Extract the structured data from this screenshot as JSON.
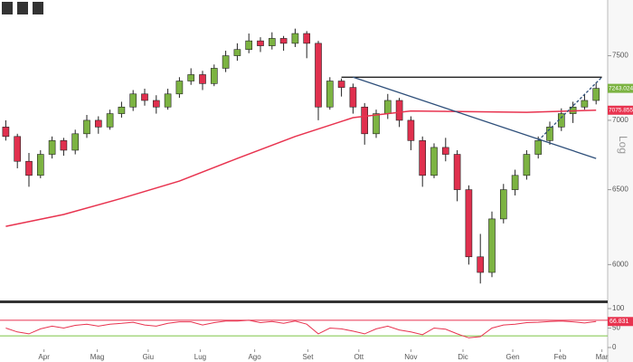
{
  "chart_data": {
    "type": "candlestick",
    "log_scale": true,
    "scale_label": "Log",
    "x": [
      0,
      1,
      2,
      3,
      4,
      5,
      6,
      7,
      8,
      9,
      10,
      11,
      12,
      13,
      14,
      15,
      16,
      17,
      18,
      19,
      20,
      21,
      22,
      23,
      24,
      25,
      26,
      27,
      28,
      29,
      30,
      31,
      32,
      33,
      34,
      35,
      36,
      37,
      38,
      39,
      40,
      41,
      42,
      43,
      44,
      45,
      46,
      47,
      48,
      49,
      50,
      51
    ],
    "open": [
      6950,
      6880,
      6700,
      6600,
      6750,
      6850,
      6780,
      6900,
      7000,
      6950,
      7050,
      7100,
      7200,
      7150,
      7100,
      7200,
      7300,
      7350,
      7280,
      7400,
      7500,
      7550,
      7620,
      7580,
      7640,
      7600,
      7680,
      7600,
      7100,
      7300,
      7250,
      7100,
      6900,
      7050,
      7150,
      7000,
      6850,
      6600,
      6800,
      6750,
      6500,
      6050,
      5950,
      6300,
      6500,
      6600,
      6750,
      6850,
      6950,
      7050,
      7100,
      7150
    ],
    "high": [
      7000,
      6900,
      6760,
      6780,
      6880,
      6870,
      6930,
      7040,
      7030,
      7080,
      7140,
      7230,
      7240,
      7190,
      7240,
      7330,
      7400,
      7380,
      7430,
      7540,
      7600,
      7680,
      7650,
      7690,
      7660,
      7720,
      7700,
      7620,
      7330,
      7320,
      7280,
      7130,
      7080,
      7200,
      7170,
      7030,
      6880,
      6830,
      6870,
      6780,
      6530,
      6200,
      6350,
      6540,
      6640,
      6780,
      6880,
      6990,
      7090,
      7140,
      7200,
      7290
    ],
    "low": [
      6850,
      6650,
      6520,
      6580,
      6720,
      6740,
      6750,
      6870,
      6900,
      6930,
      7020,
      7070,
      7110,
      7050,
      7080,
      7170,
      7270,
      7230,
      7260,
      7370,
      7460,
      7520,
      7530,
      7550,
      7540,
      7570,
      7480,
      7000,
      7080,
      7180,
      7050,
      6820,
      6870,
      7010,
      6950,
      6780,
      6520,
      6580,
      6700,
      6420,
      6000,
      5880,
      5920,
      6270,
      6460,
      6570,
      6720,
      6820,
      6920,
      6980,
      7080,
      7120
    ],
    "close": [
      6880,
      6700,
      6600,
      6750,
      6850,
      6780,
      6900,
      7000,
      6950,
      7050,
      7100,
      7200,
      7150,
      7100,
      7200,
      7300,
      7350,
      7280,
      7400,
      7500,
      7550,
      7620,
      7580,
      7640,
      7600,
      7680,
      7600,
      7100,
      7300,
      7250,
      7100,
      6900,
      7050,
      7150,
      7000,
      6850,
      6600,
      6800,
      6750,
      6500,
      6050,
      5950,
      6300,
      6500,
      6600,
      6750,
      6850,
      6950,
      7050,
      7100,
      7150,
      7243.0242
    ],
    "up_color": "#7cb342",
    "down_color": "#e0304e",
    "xlim": [
      -0.5,
      52
    ],
    "xticks": [
      {
        "value": 3.3,
        "label": "Apr"
      },
      {
        "value": 7.9,
        "label": "Mag"
      },
      {
        "value": 12.3,
        "label": "Giu"
      },
      {
        "value": 16.8,
        "label": "Lug"
      },
      {
        "value": 21.5,
        "label": "Ago"
      },
      {
        "value": 26.1,
        "label": "Set"
      },
      {
        "value": 30.5,
        "label": "Ott"
      },
      {
        "value": 35,
        "label": "Nov"
      },
      {
        "value": 39.5,
        "label": "Dic"
      },
      {
        "value": 43.8,
        "label": "Gen"
      },
      {
        "value": 47.9,
        "label": "Feb"
      },
      {
        "value": 51.5,
        "label": "Mar"
      }
    ],
    "ylim": [
      5780,
      7960
    ],
    "yticks": [
      6000,
      6500,
      7000,
      7500
    ],
    "ma": {
      "color": "#e8334f",
      "x": [
        0,
        5,
        10,
        15,
        20,
        25,
        30,
        35,
        40,
        45,
        51
      ],
      "values": [
        6250,
        6330,
        6440,
        6560,
        6720,
        6880,
        7020,
        7070,
        7065,
        7060,
        7075.8559
      ]
    },
    "trendlines": [
      {
        "color": "#222222",
        "dashed": false,
        "x": [
          29,
          51.5
        ],
        "y": [
          7330,
          7330
        ]
      },
      {
        "color": "#2e4f7a",
        "dashed": false,
        "x": [
          30,
          51
        ],
        "y": [
          7330,
          6720
        ]
      },
      {
        "color": "#2e4f7a",
        "dashed": true,
        "x": [
          46,
          51.5
        ],
        "y": [
          6850,
          7330
        ]
      }
    ],
    "rsi": {
      "color": "#e8334f",
      "ylim": [
        0,
        100
      ],
      "yticks": [
        0,
        50,
        100
      ],
      "levels": [
        {
          "value": 70,
          "color": "#e8334f"
        },
        {
          "value": 30,
          "color": "#7cc444"
        }
      ],
      "values": [
        50,
        40,
        35,
        48,
        55,
        50,
        57,
        60,
        55,
        60,
        62,
        65,
        58,
        55,
        62,
        66,
        66,
        58,
        64,
        68,
        68,
        70,
        64,
        67,
        62,
        68,
        60,
        35,
        50,
        48,
        42,
        35,
        48,
        55,
        45,
        40,
        33,
        50,
        47,
        35,
        25,
        28,
        50,
        58,
        60,
        64,
        65,
        67,
        68,
        66,
        63,
        66.831
      ]
    }
  }
}
